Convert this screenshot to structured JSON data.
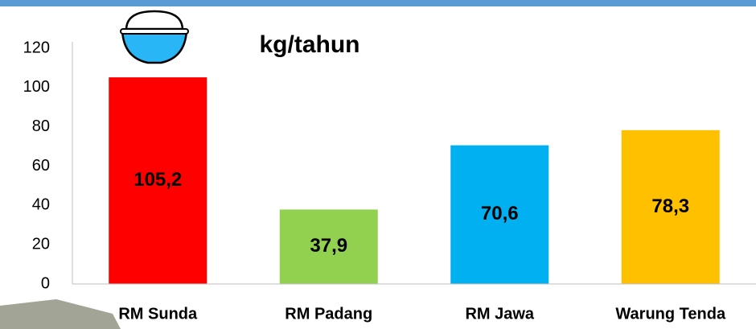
{
  "chart_data": {
    "type": "bar",
    "title": "kg/tahun",
    "categories": [
      "RM Sunda",
      "RM Padang",
      "RM Jawa",
      "Warung Tenda"
    ],
    "values": [
      105.2,
      37.9,
      70.6,
      78.3
    ],
    "value_labels": [
      "105,2",
      "37,9",
      "70,6",
      "78,3"
    ],
    "colors": [
      "#ff0000",
      "#92d050",
      "#00b0f0",
      "#ffc000"
    ],
    "ylim": [
      0,
      120
    ],
    "yticks": [
      0,
      20,
      40,
      60,
      80,
      100,
      120
    ],
    "grid": false
  }
}
